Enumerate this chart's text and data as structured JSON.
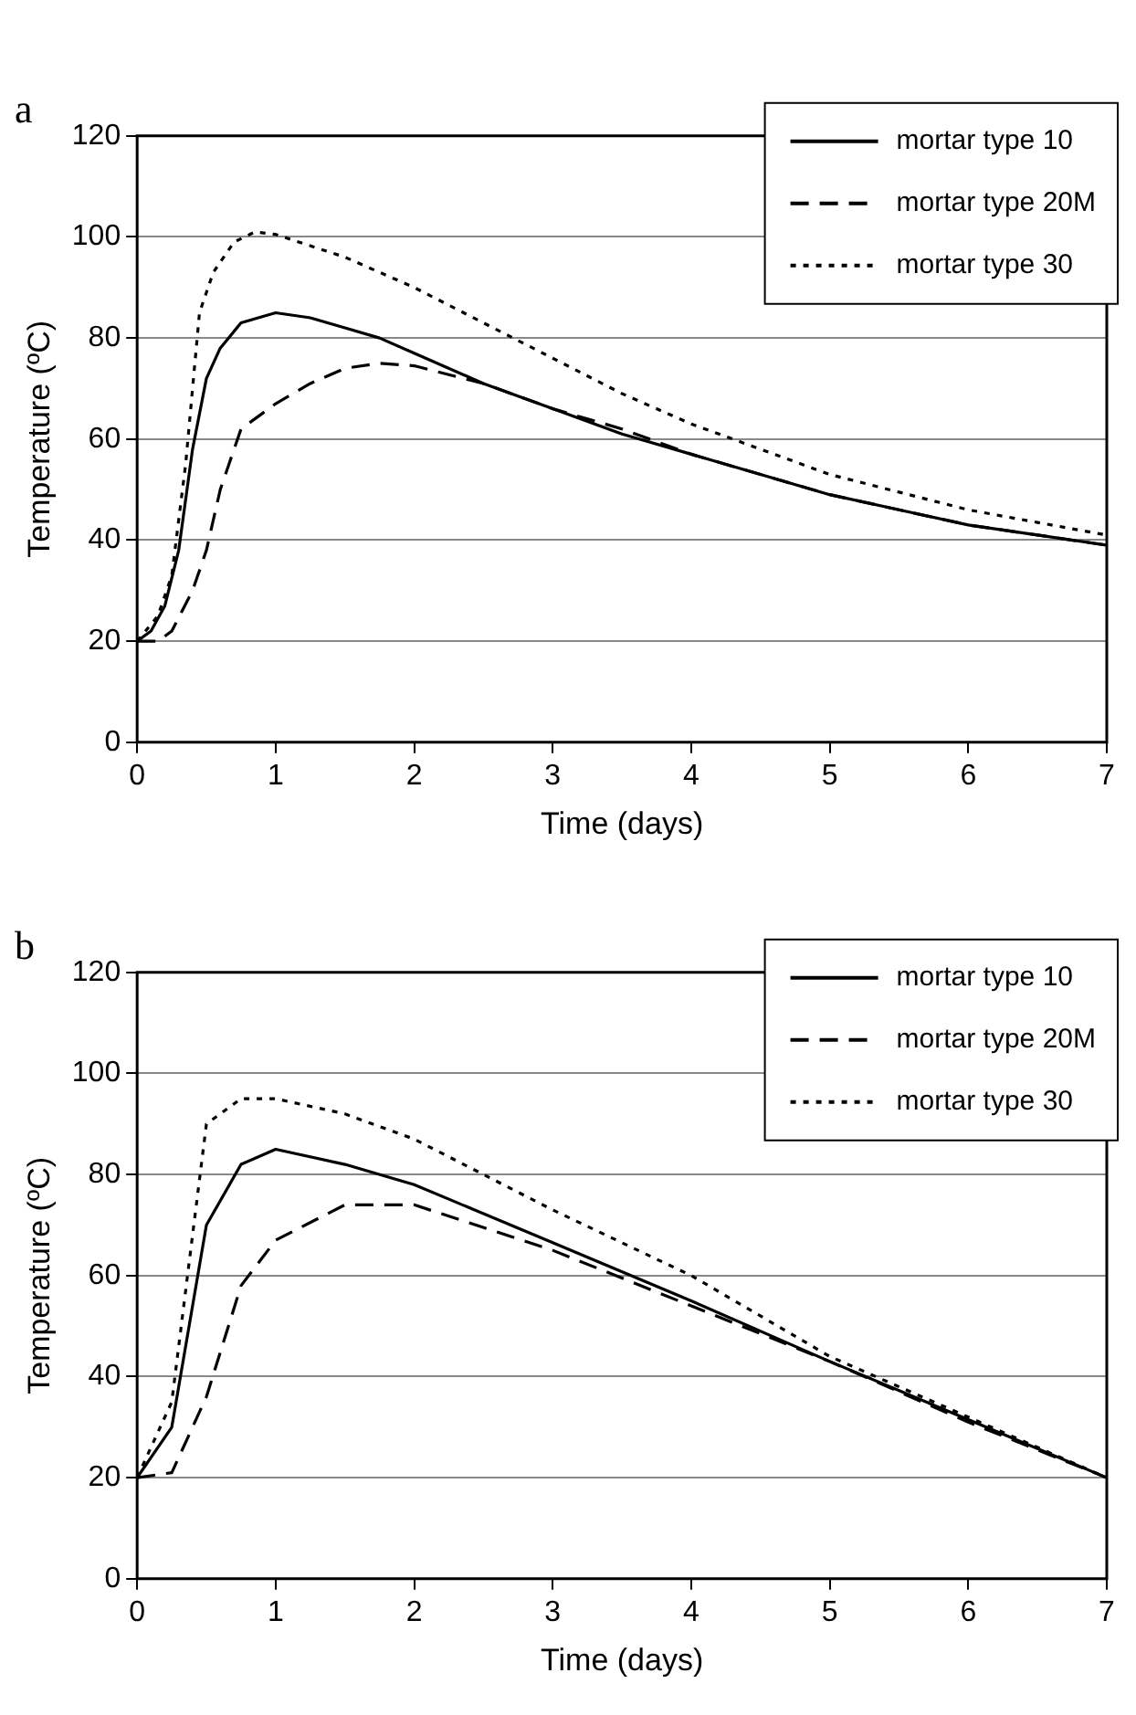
{
  "chart_data": [
    {
      "type": "line",
      "title": "a",
      "xlabel": "Time (days)",
      "ylabel": "Temperature (ºC)",
      "xlim": [
        0,
        7
      ],
      "xticks": [
        0,
        1,
        2,
        3,
        4,
        5,
        6,
        7
      ],
      "ylim": [
        0,
        120
      ],
      "yticks": [
        0,
        20,
        40,
        60,
        80,
        100,
        120
      ],
      "grid": "y",
      "legend": "top right",
      "marker": "none",
      "series": [
        {
          "name": "mortar type 10",
          "color": "#000000",
          "line_style": "solid",
          "x": [
            0,
            0.1,
            0.2,
            0.3,
            0.4,
            0.5,
            0.6,
            0.75,
            1,
            1.25,
            1.5,
            1.75,
            2,
            2.5,
            3,
            3.5,
            4,
            4.5,
            5,
            5.5,
            6,
            6.5,
            7
          ],
          "values": [
            20,
            22,
            27,
            38,
            58,
            72,
            78,
            83,
            85,
            84,
            82,
            80,
            77,
            71,
            66,
            61,
            57,
            53,
            49,
            46,
            43,
            41,
            39
          ]
        },
        {
          "name": "mortar type 20M",
          "color": "#000000",
          "line_style": "dashed",
          "x": [
            0,
            0.15,
            0.25,
            0.4,
            0.5,
            0.6,
            0.75,
            1,
            1.25,
            1.5,
            1.75,
            2,
            2.5,
            3,
            3.5,
            4,
            4.5,
            5,
            5.5,
            6,
            6.5,
            7
          ],
          "values": [
            20,
            20,
            22,
            30,
            38,
            50,
            62,
            67,
            71,
            74,
            75,
            74.5,
            71,
            66,
            62,
            57,
            53,
            49,
            46,
            43,
            41,
            39
          ]
        },
        {
          "name": "mortar type 30",
          "color": "#000000",
          "line_style": "dotted",
          "x": [
            0,
            0.15,
            0.25,
            0.35,
            0.45,
            0.55,
            0.7,
            0.85,
            1,
            1.5,
            2,
            2.5,
            3,
            3.5,
            4,
            4.5,
            5,
            5.5,
            6,
            6.5,
            7
          ],
          "values": [
            20,
            25,
            33,
            55,
            85,
            93,
            99,
            101,
            100.5,
            96,
            90,
            83,
            76,
            69,
            63,
            58,
            53,
            49.5,
            46,
            43.5,
            41
          ]
        }
      ]
    },
    {
      "type": "line",
      "title": "b",
      "xlabel": "Time (days)",
      "ylabel": "Temperature (ºC)",
      "xlim": [
        0,
        7
      ],
      "xticks": [
        0,
        1,
        2,
        3,
        4,
        5,
        6,
        7
      ],
      "ylim": [
        0,
        120
      ],
      "yticks": [
        0,
        20,
        40,
        60,
        80,
        100,
        120
      ],
      "grid": "y",
      "legend": "top right",
      "marker": "none",
      "series": [
        {
          "name": "mortar type 10",
          "color": "#000000",
          "line_style": "solid",
          "x": [
            0,
            0.25,
            0.5,
            0.75,
            1,
            1.5,
            2,
            3,
            4,
            5,
            6,
            7
          ],
          "values": [
            20,
            30,
            70,
            82,
            85,
            82,
            78,
            66.5,
            55,
            43,
            31.5,
            20
          ]
        },
        {
          "name": "mortar type 20M",
          "color": "#000000",
          "line_style": "dashed",
          "x": [
            0,
            0.25,
            0.5,
            0.75,
            1,
            1.5,
            2,
            3,
            4,
            5,
            6,
            7
          ],
          "values": [
            20,
            21,
            36,
            58,
            67,
            74,
            74,
            65,
            54,
            43,
            31,
            20
          ]
        },
        {
          "name": "mortar type 30",
          "color": "#000000",
          "line_style": "dotted",
          "x": [
            0,
            0.25,
            0.5,
            0.75,
            1,
            1.5,
            2,
            3,
            4,
            5,
            6,
            7
          ],
          "values": [
            20,
            35,
            90,
            95,
            95,
            92,
            87,
            73,
            60,
            44,
            32,
            20
          ]
        }
      ]
    }
  ]
}
